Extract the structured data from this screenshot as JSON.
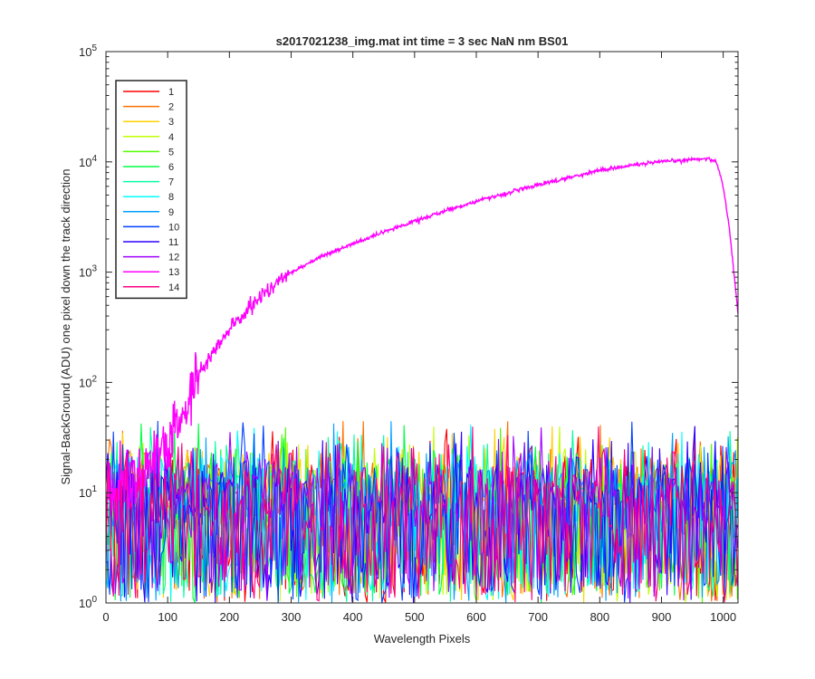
{
  "chart_data": {
    "type": "line",
    "title": "s2017021238_img.mat int time = 3 sec  NaN nm BS01",
    "xlabel": "Wavelength Pixels",
    "ylabel": "Signal-BackGround (ADU) one pixel down the track direction",
    "xlim": [
      0,
      1024
    ],
    "ylim": [
      1,
      100000
    ],
    "yscale": "log",
    "x_ticks": [
      "0",
      "100",
      "200",
      "300",
      "400",
      "500",
      "600",
      "700",
      "800",
      "900",
      "1000"
    ],
    "y_ticks": [
      {
        "base": "10",
        "exp": "0"
      },
      {
        "base": "10",
        "exp": "1"
      },
      {
        "base": "10",
        "exp": "2"
      },
      {
        "base": "10",
        "exp": "3"
      },
      {
        "base": "10",
        "exp": "4"
      },
      {
        "base": "10",
        "exp": "5"
      }
    ],
    "grid": false,
    "legend_position": "top-left",
    "series": [
      {
        "name": "1",
        "color": "#ff0000",
        "kind": "noise",
        "typical": 10,
        "max": 45
      },
      {
        "name": "2",
        "color": "#ff7000",
        "kind": "noise",
        "typical": 10,
        "max": 45
      },
      {
        "name": "3",
        "color": "#ffd000",
        "kind": "noise",
        "typical": 10,
        "max": 45
      },
      {
        "name": "4",
        "color": "#c0ff00",
        "kind": "noise",
        "typical": 10,
        "max": 45
      },
      {
        "name": "5",
        "color": "#50ff00",
        "kind": "noise",
        "typical": 10,
        "max": 45
      },
      {
        "name": "6",
        "color": "#00ff40",
        "kind": "noise",
        "typical": 10,
        "max": 45
      },
      {
        "name": "7",
        "color": "#00ffa0",
        "kind": "noise",
        "typical": 10,
        "max": 45
      },
      {
        "name": "8",
        "color": "#00ffff",
        "kind": "noise",
        "typical": 10,
        "max": 45
      },
      {
        "name": "9",
        "color": "#00a0ff",
        "kind": "noise",
        "typical": 10,
        "max": 45
      },
      {
        "name": "10",
        "color": "#0040ff",
        "kind": "noise",
        "typical": 10,
        "max": 45
      },
      {
        "name": "11",
        "color": "#3000ff",
        "kind": "noise",
        "typical": 10,
        "max": 45
      },
      {
        "name": "12",
        "color": "#a000ff",
        "kind": "noise",
        "typical": 10,
        "max": 45
      },
      {
        "name": "13",
        "color": "#ff00ff",
        "kind": "signal",
        "x": [
          0,
          60,
          100,
          130,
          150,
          200,
          250,
          300,
          350,
          400,
          450,
          500,
          550,
          600,
          650,
          700,
          750,
          800,
          850,
          900,
          950,
          975,
          990,
          1000,
          1010,
          1024
        ],
        "y": [
          10,
          15,
          25,
          60,
          120,
          300,
          600,
          1000,
          1400,
          1800,
          2300,
          2900,
          3600,
          4400,
          5200,
          6200,
          7200,
          8400,
          9300,
          10000,
          10500,
          10800,
          9800,
          6000,
          2500,
          420
        ]
      },
      {
        "name": "14",
        "color": "#ff0080",
        "kind": "noise",
        "typical": 10,
        "max": 45
      }
    ]
  }
}
